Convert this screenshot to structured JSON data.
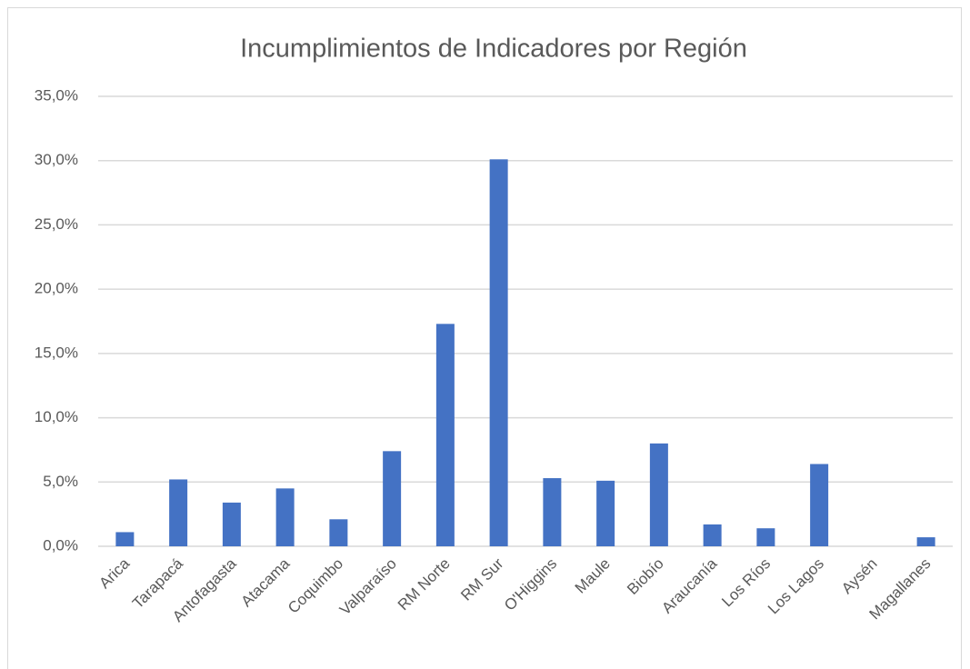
{
  "chart_data": {
    "type": "bar",
    "title": "Incumplimientos de Indicadores por Región",
    "categories": [
      "Arica",
      "Tarapacá",
      "Antofagasta",
      "Atacama",
      "Coquimbo",
      "Valparaíso",
      "RM Norte",
      "RM Sur",
      "O'Higgins",
      "Maule",
      "Biobío",
      "Araucanía",
      "Los Ríos",
      "Los Lagos",
      "Aysén",
      "Magallanes"
    ],
    "values": [
      1.1,
      5.2,
      3.4,
      4.5,
      2.1,
      7.4,
      17.3,
      30.1,
      5.3,
      5.1,
      8.0,
      1.7,
      1.4,
      6.4,
      0,
      0.7
    ],
    "color": "#4472c4",
    "ylim": [
      0,
      35
    ],
    "yticks": [
      {
        "value": 0,
        "label": "0,0%"
      },
      {
        "value": 5,
        "label": "5,0%"
      },
      {
        "value": 10,
        "label": "10,0%"
      },
      {
        "value": 15,
        "label": "15,0%"
      },
      {
        "value": 20,
        "label": "20,0%"
      },
      {
        "value": 25,
        "label": "25,0%"
      },
      {
        "value": 30,
        "label": "30,0%"
      },
      {
        "value": 35,
        "label": "35,0%"
      }
    ],
    "grid": true
  }
}
